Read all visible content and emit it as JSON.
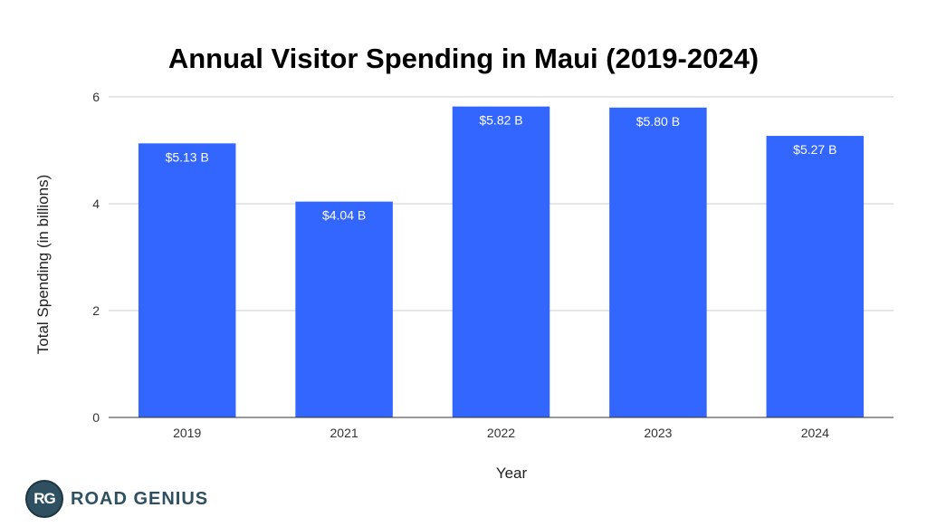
{
  "chart_data": {
    "type": "bar",
    "title": "Annual Visitor Spending in Maui (2019-2024)",
    "xlabel": "Year",
    "ylabel": "Total Spending (in billions)",
    "categories": [
      "2019",
      "2021",
      "2022",
      "2023",
      "2024"
    ],
    "values": [
      5.13,
      4.04,
      5.82,
      5.8,
      5.27
    ],
    "data_labels": [
      "$5.13 B",
      "$4.04 B",
      "$5.82 B",
      "$5.80 B",
      "$5.27 B"
    ],
    "ylim": [
      0,
      6
    ],
    "yticks": [
      "0",
      "2",
      "4",
      "6"
    ],
    "grid": true,
    "bar_color": "#3366ff"
  },
  "logo": {
    "badge": "RG",
    "text": "ROAD GENIUS"
  }
}
